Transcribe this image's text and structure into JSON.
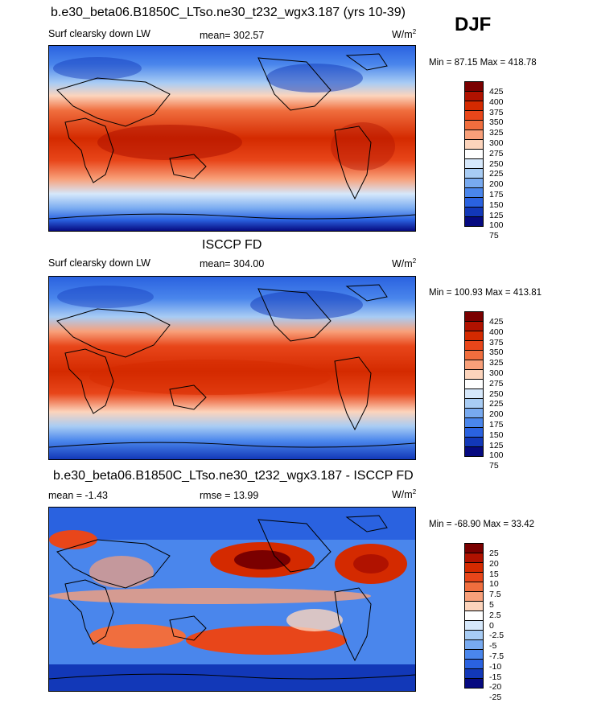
{
  "season_label": "DJF",
  "panels": [
    {
      "title": "b.e30_beta06.B1850C_LTso.ne30_t232_wgx3.187 (yrs 10-39)",
      "left_label": "Surf clearsky down LW",
      "center_label": "mean= 302.57",
      "units": "W/m",
      "units_sup": "2",
      "minmax": "Min =  87.15 Max = 418.78",
      "colorbar_labels": [
        "425",
        "400",
        "375",
        "350",
        "325",
        "300",
        "275",
        "250",
        "225",
        "200",
        "175",
        "150",
        "125",
        "100",
        "75"
      ]
    },
    {
      "title": "ISCCP FD",
      "left_label": "Surf clearsky down LW",
      "center_label": "mean= 304.00",
      "units": "W/m",
      "units_sup": "2",
      "minmax": "Min = 100.93 Max = 413.81",
      "colorbar_labels": [
        "425",
        "400",
        "375",
        "350",
        "325",
        "300",
        "275",
        "250",
        "225",
        "200",
        "175",
        "150",
        "125",
        "100",
        "75"
      ]
    },
    {
      "title": "b.e30_beta06.B1850C_LTso.ne30_t232_wgx3.187 - ISCCP FD",
      "left_label": "mean =  -1.43",
      "center_label": "rmse =  13.99",
      "units": "W/m",
      "units_sup": "2",
      "minmax": "Min = -68.90 Max =  33.42",
      "colorbar_labels": [
        "25",
        "20",
        "15",
        "10",
        "7.5",
        "5",
        "2.5",
        "0",
        "-2.5",
        "-5",
        "-7.5",
        "-10",
        "-15",
        "-20",
        "-25"
      ]
    }
  ],
  "colors": {
    "abs_scale": [
      "#7a0000",
      "#b01200",
      "#d42a00",
      "#e8461a",
      "#f06e3e",
      "#f8a07a",
      "#fcd4bc",
      "#ffffff",
      "#d6e8fb",
      "#a8ccf4",
      "#78aaf0",
      "#4a86ec",
      "#2a62e0",
      "#1238b8",
      "#060a80"
    ],
    "diff_scale": [
      "#7a0000",
      "#b01200",
      "#d42a00",
      "#e8461a",
      "#f06e3e",
      "#f8a07a",
      "#fcd4bc",
      "#ffffff",
      "#d6e8fb",
      "#a8ccf4",
      "#78aaf0",
      "#4a86ec",
      "#2a62e0",
      "#1238b8",
      "#060a80"
    ]
  }
}
